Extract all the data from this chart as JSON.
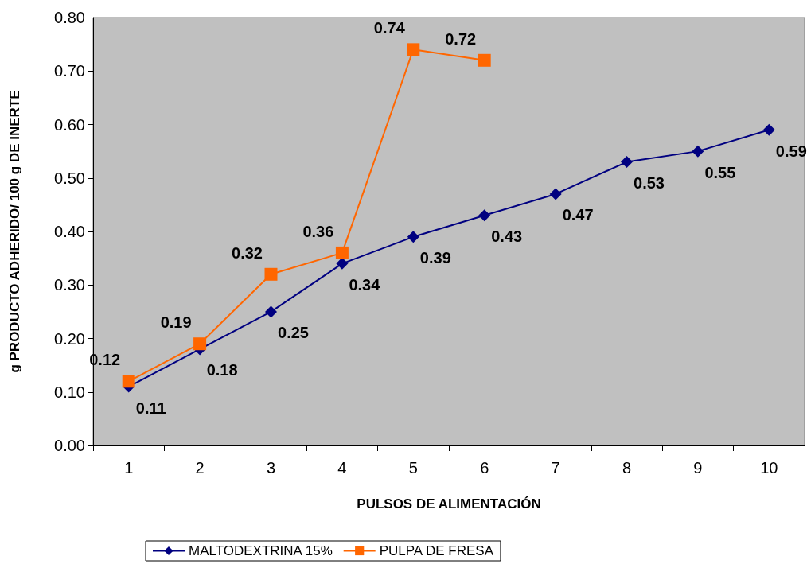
{
  "chart_data": {
    "type": "line",
    "xlabel": "PULSOS DE ALIMENTACIÓN",
    "ylabel": "g PRODUCTO ADHERIDO/ 100 g DE INERTE",
    "categories": [
      "1",
      "2",
      "3",
      "4",
      "5",
      "6",
      "7",
      "8",
      "9",
      "10"
    ],
    "series": [
      {
        "name": "MALTODEXTRINA 15%",
        "color": "#000080",
        "marker": "diamond",
        "values": [
          0.11,
          0.18,
          0.25,
          0.34,
          0.39,
          0.43,
          0.47,
          0.53,
          0.55,
          0.59
        ]
      },
      {
        "name": "PULPA DE FRESA",
        "color": "#ff6600",
        "marker": "square",
        "values": [
          0.12,
          0.19,
          0.32,
          0.36,
          0.74,
          0.72,
          null,
          null,
          null,
          null
        ]
      }
    ],
    "ylim": [
      0,
      0.8
    ],
    "yticks": [
      {
        "value": 0,
        "label": "0.00"
      },
      {
        "value": 0.1,
        "label": "0.10"
      },
      {
        "value": 0.2,
        "label": "0.20"
      },
      {
        "value": 0.3,
        "label": "0.30"
      },
      {
        "value": 0.4,
        "label": "0.40"
      },
      {
        "value": 0.5,
        "label": "0.50"
      },
      {
        "value": 0.6,
        "label": "0.60"
      },
      {
        "value": 0.7,
        "label": "0.70"
      },
      {
        "value": 0.8,
        "label": "0.80"
      }
    ],
    "data_labels": true,
    "grid": false,
    "legend": "bottom"
  }
}
